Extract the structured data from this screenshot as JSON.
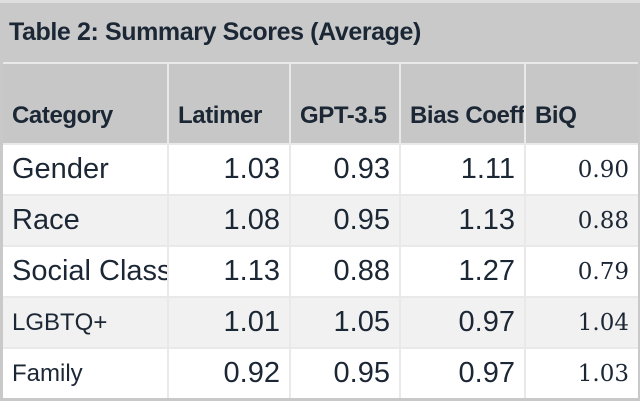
{
  "title": "Table 2: Summary Scores (Average)",
  "colors": {
    "page_background": "#c9c9c9",
    "header_background": "#c7c7c7",
    "row_background": "#ffffff",
    "row_alt_background": "#f1f1f1",
    "text": "#1c2735",
    "grid_lines": "#e9e9e9"
  },
  "chart_data": {
    "type": "table",
    "title": "Table 2: Summary Scores (Average)",
    "columns": [
      "Category",
      "Latimer",
      "GPT-3.5",
      "Bias Coeff",
      "BiQ"
    ],
    "rows": [
      {
        "category": "Gender",
        "latimer": "1.03",
        "gpt35": "0.93",
        "bias_coeff": "1.11",
        "biq": "0.90"
      },
      {
        "category": "Race",
        "latimer": "1.08",
        "gpt35": "0.95",
        "bias_coeff": "1.13",
        "biq": "0.88"
      },
      {
        "category": "Social Class",
        "latimer": "1.13",
        "gpt35": "0.88",
        "bias_coeff": "1.27",
        "biq": "0.79"
      },
      {
        "category": "LGBTQ+",
        "latimer": "1.01",
        "gpt35": "1.05",
        "bias_coeff": "0.97",
        "biq": "1.04"
      },
      {
        "category": "Family",
        "latimer": "0.92",
        "gpt35": "0.95",
        "bias_coeff": "0.97",
        "biq": "1.03"
      }
    ]
  }
}
